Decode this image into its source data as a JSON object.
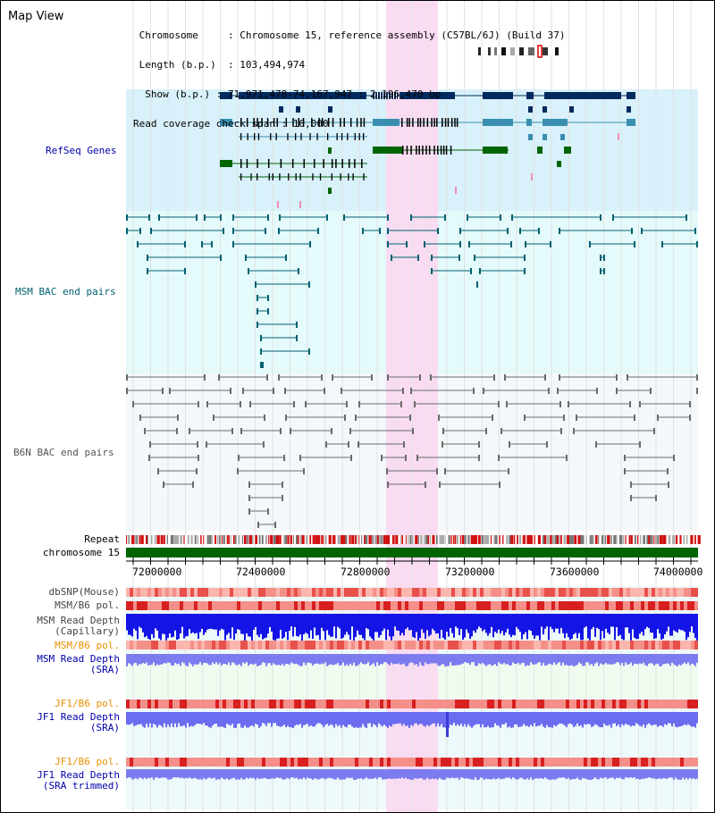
{
  "title": "Map View",
  "info": {
    "chromosome_key": "Chromosome",
    "chromosome_val": "Chromosome 15, reference assembly (C57BL/6J) (Build 37)",
    "length_key": "Length (b.p.)",
    "length_val": "103,494,974",
    "show_key": "Show (b.p.)",
    "show_val": "71,971,478-74,167,947 : 2,196,470 bp",
    "coverage_key": "Read coverage check span",
    "coverage_val": "10,000"
  },
  "tracks": {
    "refseq": "RefSeq Genes",
    "msm_bac": "MSM BAC end pairs",
    "b6n_bac": "B6N BAC end pairs",
    "repeat": "Repeat",
    "chromosome": "chromosome 15",
    "dbsnp": "dbSNP(Mouse)",
    "msm_b6_pol_1": "MSM/B6 pol.",
    "msm_read_depth_cap_1": "MSM Read Depth",
    "msm_read_depth_cap_2": "(Capillary)",
    "msm_b6_pol_2": "MSM/B6 pol.",
    "msm_read_depth_sra_1": "MSM Read Depth",
    "msm_read_depth_sra_2": "(SRA)",
    "jf1_b6_pol_1": "JF1/B6 pol.",
    "jf1_read_depth_sra_1": "JF1 Read Depth",
    "jf1_read_depth_sra_2": "(SRA)",
    "jf1_b6_pol_2": "JF1/B6 pol.",
    "jf1_read_depth_trim_1": "JF1 Read Depth",
    "jf1_read_depth_trim_2": "(SRA trimmed)"
  },
  "axis": {
    "ticks": [
      "72000000",
      "72400000",
      "72800000",
      "73200000",
      "73600000",
      "74000000"
    ]
  },
  "colors": {
    "refseq_bg": "#d8f1fb",
    "msm_bg": "#e4fafb",
    "b6n_bg": "#f4f8fb",
    "highlight": "#fadcf2",
    "navy": "#012a5e",
    "teal": "#3a8fb0",
    "green": "#006400",
    "label_blue": "#0000aa",
    "label_teal": "#006070",
    "label_gray": "#555555",
    "label_orange": "#e89000"
  }
}
